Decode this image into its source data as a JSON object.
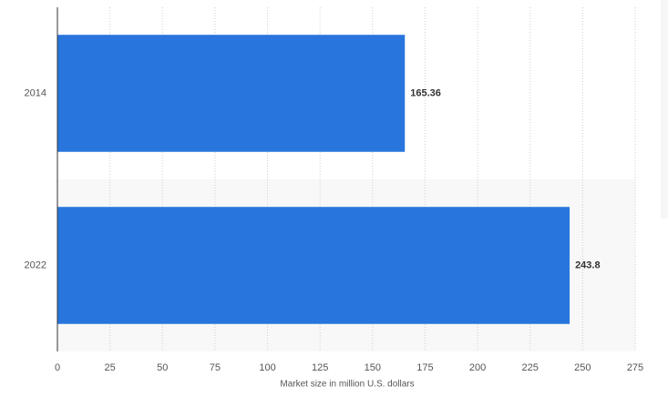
{
  "chart_data": {
    "type": "hbar",
    "categories": [
      "2014",
      "2022"
    ],
    "values": [
      165.36,
      243.8
    ],
    "color": "#2876dd",
    "xlabel": "Market size in million U.S. dollars",
    "xlim": [
      0,
      275
    ],
    "xticks": [
      0,
      25,
      50,
      75,
      100,
      125,
      150,
      175,
      200,
      225,
      250,
      275
    ],
    "grid": true
  }
}
